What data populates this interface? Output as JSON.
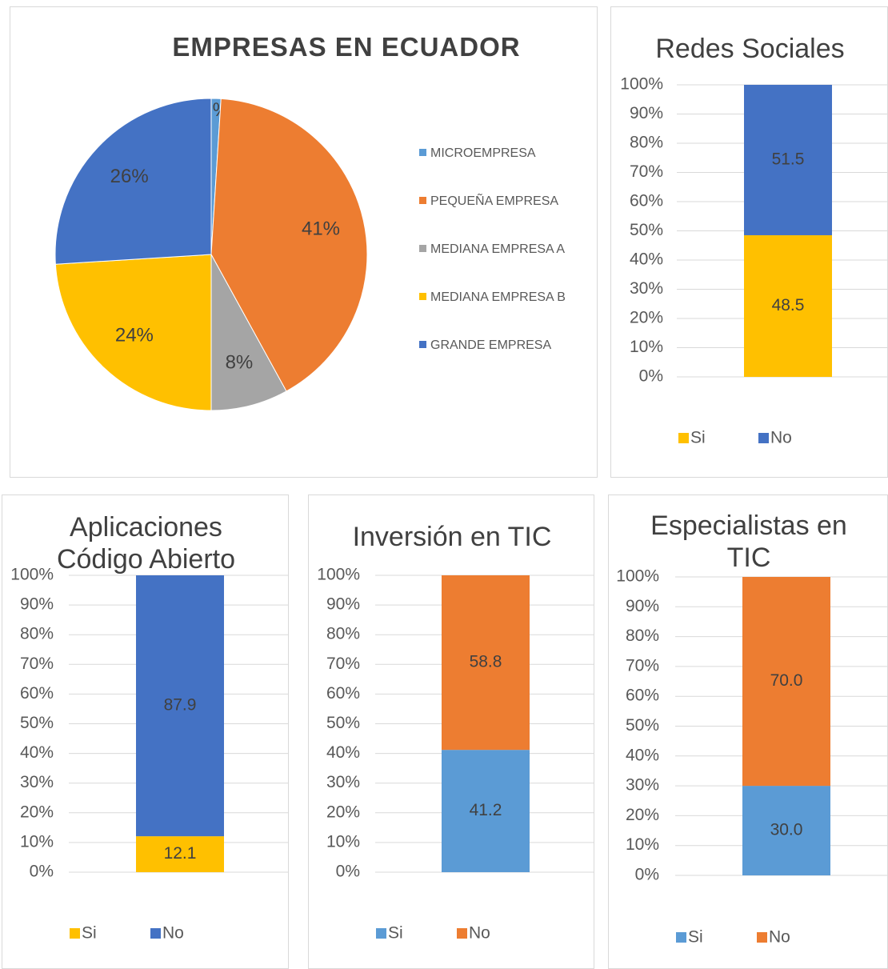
{
  "chart_data": [
    {
      "type": "pie",
      "title": "EMPRESAS EN ECUADOR",
      "categories": [
        "MICROEMPRESA",
        "PEQUEÑA EMPRESA",
        "MEDIANA EMPRESA A",
        "MEDIANA EMPRESA B",
        "GRANDE EMPRESA"
      ],
      "values": [
        1,
        41,
        8,
        24,
        26
      ],
      "value_labels": [
        "1%",
        "41%",
        "8%",
        "24%",
        "26%"
      ],
      "colors": [
        "#5b9bd5",
        "#ed7d31",
        "#a5a5a5",
        "#ffc000",
        "#4472c4"
      ],
      "legend": "right"
    },
    {
      "type": "stacked_bar",
      "title": "Redes Sociales",
      "categories": [
        null
      ],
      "series": [
        {
          "name": "Si",
          "color": "#ffc000",
          "values": [
            48.5
          ]
        },
        {
          "name": "No",
          "color": "#4472c4",
          "values": [
            51.5
          ]
        }
      ],
      "ylim": [
        0,
        100
      ],
      "yticks": [
        {
          "value": 0,
          "label": "0%"
        },
        {
          "value": 10,
          "label": "10%"
        },
        {
          "value": 20,
          "label": "20%"
        },
        {
          "value": 30,
          "label": "30%"
        },
        {
          "value": 40,
          "label": "40%"
        },
        {
          "value": 50,
          "label": "50%"
        },
        {
          "value": 60,
          "label": "60%"
        },
        {
          "value": 70,
          "label": "70%"
        },
        {
          "value": 80,
          "label": "80%"
        },
        {
          "value": 90,
          "label": "90%"
        },
        {
          "value": 100,
          "label": "100%"
        }
      ],
      "grid": true,
      "legend": "bottom"
    },
    {
      "type": "stacked_bar",
      "title": "Aplicaciones Código Abierto",
      "categories": [
        null
      ],
      "series": [
        {
          "name": "Si",
          "color": "#ffc000",
          "values": [
            12.1
          ]
        },
        {
          "name": "No",
          "color": "#4472c4",
          "values": [
            87.9
          ]
        }
      ],
      "ylim": [
        0,
        100
      ],
      "yticks": [
        {
          "value": 0,
          "label": "0%"
        },
        {
          "value": 10,
          "label": "10%"
        },
        {
          "value": 20,
          "label": "20%"
        },
        {
          "value": 30,
          "label": "30%"
        },
        {
          "value": 40,
          "label": "40%"
        },
        {
          "value": 50,
          "label": "50%"
        },
        {
          "value": 60,
          "label": "60%"
        },
        {
          "value": 70,
          "label": "70%"
        },
        {
          "value": 80,
          "label": "80%"
        },
        {
          "value": 90,
          "label": "90%"
        },
        {
          "value": 100,
          "label": "100%"
        }
      ],
      "grid": true,
      "legend": "bottom"
    },
    {
      "type": "stacked_bar",
      "title": "Inversión en TIC",
      "categories": [
        null
      ],
      "series": [
        {
          "name": "Si",
          "color": "#5b9bd5",
          "values": [
            41.2
          ]
        },
        {
          "name": "No",
          "color": "#ed7d31",
          "values": [
            58.8
          ]
        }
      ],
      "ylim": [
        0,
        100
      ],
      "yticks": [
        {
          "value": 0,
          "label": "0%"
        },
        {
          "value": 10,
          "label": "10%"
        },
        {
          "value": 20,
          "label": "20%"
        },
        {
          "value": 30,
          "label": "30%"
        },
        {
          "value": 40,
          "label": "40%"
        },
        {
          "value": 50,
          "label": "50%"
        },
        {
          "value": 60,
          "label": "60%"
        },
        {
          "value": 70,
          "label": "70%"
        },
        {
          "value": 80,
          "label": "80%"
        },
        {
          "value": 90,
          "label": "90%"
        },
        {
          "value": 100,
          "label": "100%"
        }
      ],
      "grid": true,
      "legend": "bottom"
    },
    {
      "type": "stacked_bar",
      "title": "Especialistas en TIC",
      "categories": [
        null
      ],
      "series": [
        {
          "name": "Si",
          "color": "#5b9bd5",
          "values": [
            30
          ],
          "value_labels": [
            "30.0"
          ]
        },
        {
          "name": "No",
          "color": "#ed7d31",
          "values": [
            70
          ],
          "value_labels": [
            "70.0"
          ]
        }
      ],
      "ylim": [
        0,
        100
      ],
      "yticks": [
        {
          "value": 0,
          "label": "0%"
        },
        {
          "value": 10,
          "label": "10%"
        },
        {
          "value": 20,
          "label": "20%"
        },
        {
          "value": 30,
          "label": "30%"
        },
        {
          "value": 40,
          "label": "40%"
        },
        {
          "value": 50,
          "label": "50%"
        },
        {
          "value": 60,
          "label": "60%"
        },
        {
          "value": 70,
          "label": "70%"
        },
        {
          "value": 80,
          "label": "80%"
        },
        {
          "value": 90,
          "label": "90%"
        },
        {
          "value": 100,
          "label": "100%"
        }
      ],
      "grid": true,
      "legend": "bottom"
    }
  ]
}
